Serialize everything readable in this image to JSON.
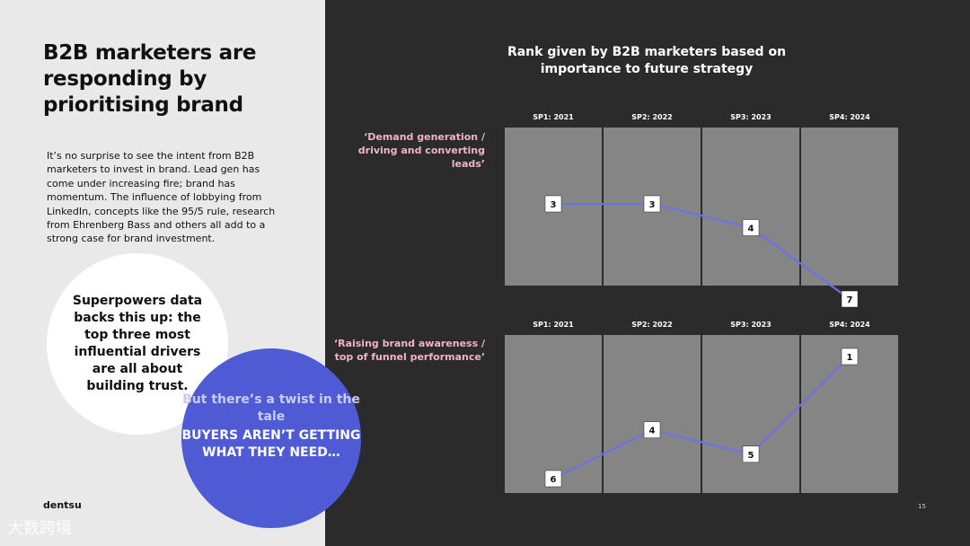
{
  "left": {
    "title": "B2B marketers are responding by prioritising brand",
    "body": "It’s no surprise to see the intent from B2B marketers to invest in brand. Lead gen has come under increasing fire; brand has momentum. The influence of lobbying from LinkedIn, concepts like the 95/5 rule, research from Ehrenberg Bass and others all add to a strong case for brand investment.",
    "white_circle": "Superpowers data backs this up: the top three most influential drivers are all about building trust.",
    "blue_circle_line1": "But there’s a twist in the tale",
    "blue_circle_line2": "BUYERS AREN’T GETTING WHAT THEY NEED…",
    "brand": "dentsu",
    "watermark": "大数跨境"
  },
  "page_number": "15",
  "colors": {
    "accent_blue": "#4f5bd5",
    "label_pink": "#f2b3c3",
    "panel_grey": "#858585",
    "dark_bg": "#2b2b2b"
  },
  "chart_data": [
    {
      "type": "line",
      "title": "Rank given by B2B marketers based on importance to future strategy",
      "row_label": "‘Demand generation / driving and converting leads’",
      "categories": [
        "SP1: 2021",
        "SP2: 2022",
        "SP3: 2023",
        "SP4: 2024"
      ],
      "values": [
        3,
        3,
        4,
        7
      ],
      "ylim": [
        1,
        7
      ],
      "y_inverted": true
    },
    {
      "type": "line",
      "row_label": "‘Raising brand awareness / top of funnel performance’",
      "categories": [
        "SP1: 2021",
        "SP2: 2022",
        "SP3: 2023",
        "SP4: 2024"
      ],
      "values": [
        6,
        4,
        5,
        1
      ],
      "ylim": [
        1,
        7
      ],
      "y_inverted": true
    }
  ]
}
